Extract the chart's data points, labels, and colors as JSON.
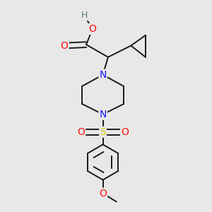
{
  "bg_color": "#e8e8e8",
  "colors": {
    "C": "#1a1a1a",
    "N": "#1414ff",
    "O": "#ff0d0d",
    "S": "#cccc00",
    "H": "#5a7a7a",
    "bond": "#1a1a1a"
  },
  "figsize": [
    3.0,
    3.0
  ],
  "dpi": 100,
  "xlim": [
    0.0,
    1.0
  ],
  "ylim": [
    0.0,
    1.0
  ]
}
